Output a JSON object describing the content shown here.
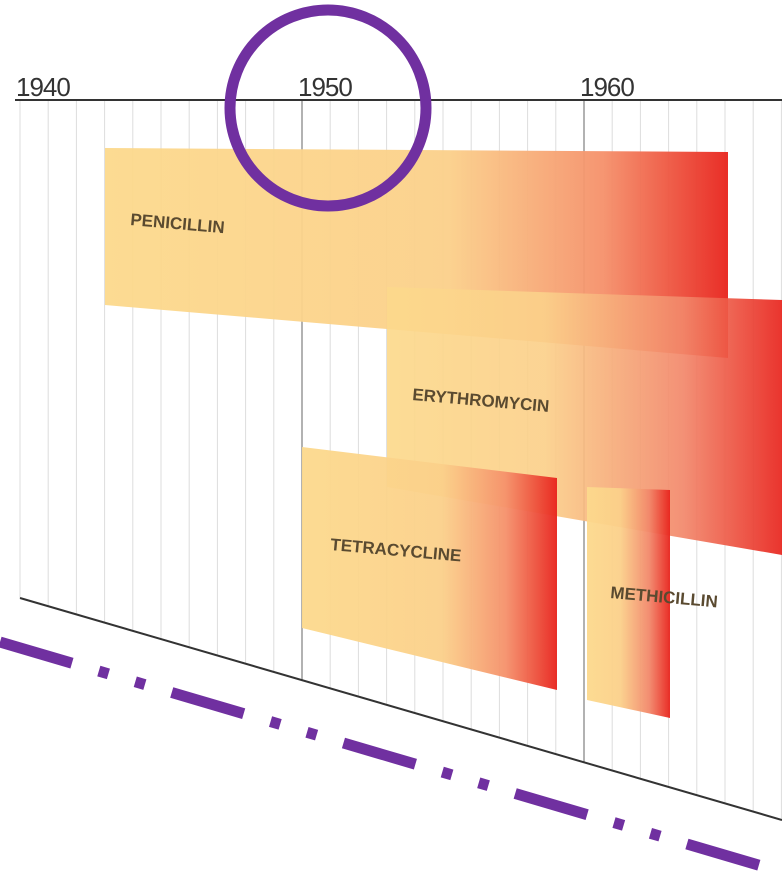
{
  "timeline": {
    "axis_labels": [
      "1940",
      "1950",
      "1960"
    ],
    "bars": [
      {
        "label": "PENICILLIN"
      },
      {
        "label": "ERYTHROMYCIN"
      },
      {
        "label": "TETRACYCLINE"
      },
      {
        "label": "METHICILLIN"
      }
    ]
  }
}
